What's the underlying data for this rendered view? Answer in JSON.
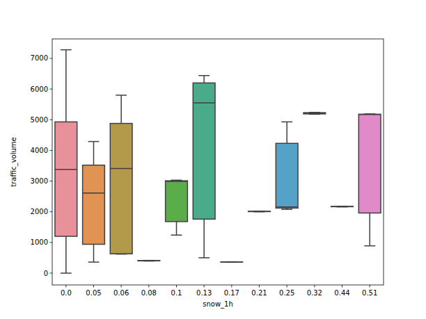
{
  "chart_data": {
    "type": "box",
    "x_label": "snow_1h",
    "y_label": "traffic_volume",
    "categories": [
      "0.0",
      "0.05",
      "0.06",
      "0.08",
      "0.1",
      "0.13",
      "0.17",
      "0.21",
      "0.25",
      "0.32",
      "0.44",
      "0.51"
    ],
    "min": [
      0,
      360,
      620,
      395,
      1240,
      500,
      355,
      2000,
      2080,
      5180,
      2160,
      890
    ],
    "q1": [
      1200,
      940,
      630,
      400,
      1680,
      1760,
      358,
      2005,
      2120,
      5190,
      2165,
      1960
    ],
    "median": [
      3380,
      2610,
      3410,
      405,
      2990,
      5550,
      360,
      2010,
      2160,
      5210,
      2170,
      5170
    ],
    "q3": [
      4930,
      3520,
      4880,
      410,
      3010,
      6200,
      362,
      2015,
      4230,
      5230,
      2175,
      5180
    ],
    "max": [
      7280,
      4290,
      5800,
      415,
      3030,
      6440,
      365,
      2020,
      4930,
      5240,
      2180,
      5190
    ],
    "colors": [
      "#e8919a",
      "#e09353",
      "#b39a4a",
      "#8fa443",
      "#5aad48",
      "#4aab89",
      "#4ba8a2",
      "#4da5b3",
      "#55a2c9",
      "#8c9ce0",
      "#c291e3",
      "#e08bc7"
    ],
    "ylim": [
      -385,
      7634
    ],
    "yticks": [
      0,
      1000,
      2000,
      3000,
      4000,
      5000,
      6000,
      7000
    ],
    "grid": false
  }
}
